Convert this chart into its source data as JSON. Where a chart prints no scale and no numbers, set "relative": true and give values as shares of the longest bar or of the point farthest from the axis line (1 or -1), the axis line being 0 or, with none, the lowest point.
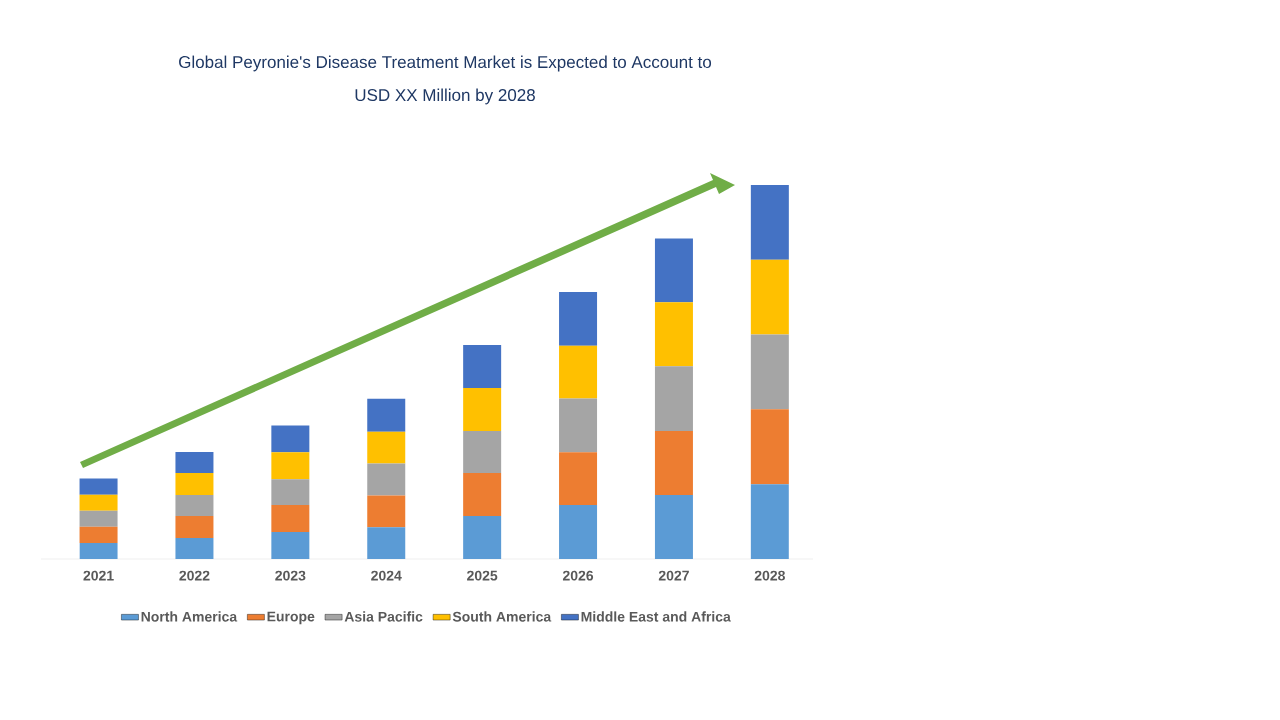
{
  "chart_data": {
    "type": "bar",
    "title": "Global Peyronie's Disease Treatment Market is Expected to Account to\nUSD XX Million by 2028",
    "categories": [
      "2021",
      "2022",
      "2023",
      "2024",
      "2025",
      "2026",
      "2027",
      "2028"
    ],
    "relative": true,
    "stacked": true,
    "legend": "bottom",
    "series": [
      {
        "name": "North America",
        "color": "#5b9bd5",
        "values": [
          0.043,
          0.056,
          0.072,
          0.085,
          0.115,
          0.144,
          0.171,
          0.2
        ]
      },
      {
        "name": "Europe",
        "color": "#ed7d31",
        "values": [
          0.043,
          0.059,
          0.072,
          0.085,
          0.115,
          0.141,
          0.171,
          0.2
        ]
      },
      {
        "name": "Asia Pacific",
        "color": "#a5a5a5",
        "values": [
          0.043,
          0.056,
          0.069,
          0.085,
          0.112,
          0.144,
          0.173,
          0.2
        ]
      },
      {
        "name": "South America",
        "color": "#ffc000",
        "values": [
          0.043,
          0.059,
          0.072,
          0.085,
          0.115,
          0.141,
          0.171,
          0.2
        ]
      },
      {
        "name": "Middle East and Africa",
        "color": "#4472c4",
        "values": [
          0.043,
          0.056,
          0.072,
          0.088,
          0.115,
          0.144,
          0.171,
          0.2
        ]
      }
    ]
  }
}
